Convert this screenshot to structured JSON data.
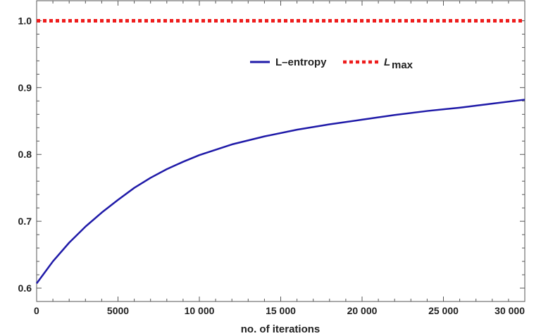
{
  "chart_data": {
    "type": "line",
    "title": "",
    "xlabel": "no. of iterations",
    "ylabel": "",
    "xlim": [
      0,
      30000
    ],
    "ylim": [
      0.58,
      1.03
    ],
    "grid": false,
    "legend_position": "top-center",
    "x_ticks": [
      0,
      5000,
      10000,
      15000,
      20000,
      25000,
      30000
    ],
    "x_tick_labels": [
      "0",
      "5000",
      "10 000",
      "15 000",
      "20 000",
      "25 000",
      "30 000"
    ],
    "y_ticks": [
      0.6,
      0.7,
      0.8,
      0.9,
      1.0
    ],
    "y_tick_labels": [
      "0.6",
      "0.7",
      "0.8",
      "0.9",
      "1.0"
    ],
    "series": [
      {
        "name": "L–entropy",
        "color": "#1f1aa8",
        "style": "solid",
        "x": [
          0,
          1000,
          2000,
          3000,
          4000,
          5000,
          6000,
          7000,
          8000,
          9000,
          10000,
          12000,
          14000,
          16000,
          18000,
          20000,
          22000,
          24000,
          26000,
          28000,
          30000
        ],
        "y": [
          0.607,
          0.64,
          0.668,
          0.692,
          0.713,
          0.732,
          0.75,
          0.765,
          0.778,
          0.789,
          0.799,
          0.815,
          0.827,
          0.837,
          0.845,
          0.852,
          0.859,
          0.865,
          0.87,
          0.876,
          0.882
        ]
      },
      {
        "name": "L",
        "name_subscript": "max",
        "color": "#ee1c1c",
        "style": "dotted",
        "x": [
          0,
          30000
        ],
        "y": [
          1.0,
          1.0
        ]
      }
    ]
  }
}
